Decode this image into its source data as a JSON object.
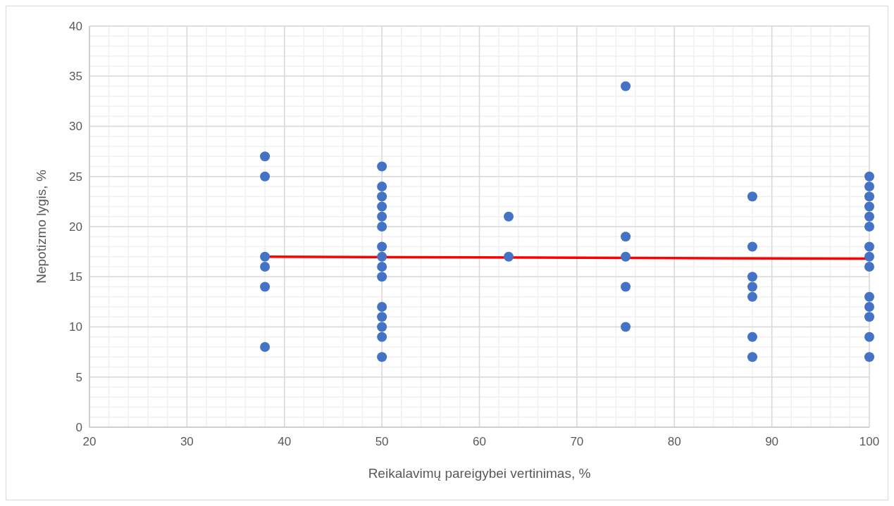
{
  "chart_data": {
    "type": "scatter",
    "xlabel": "Reikalavimų pareigybei vertinimas, %",
    "ylabel": "Nepotizmo lygis, %",
    "xlim": [
      20,
      100
    ],
    "xticks": [
      20,
      30,
      40,
      50,
      60,
      70,
      80,
      90,
      100
    ],
    "ylim": [
      0,
      40
    ],
    "yticks": [
      0,
      5,
      10,
      15,
      20,
      25,
      30,
      35,
      40
    ],
    "grid": true,
    "marker": "circle",
    "series": [
      {
        "color": "#4472c4",
        "x": [
          38,
          38,
          38,
          38,
          38,
          38,
          50,
          50,
          50,
          50,
          50,
          50,
          50,
          50,
          50,
          50,
          50,
          50,
          50,
          50,
          50,
          63,
          63,
          75,
          75,
          75,
          75,
          75,
          88,
          88,
          88,
          88,
          88,
          88,
          88,
          100,
          100,
          100,
          100,
          100,
          100,
          100,
          100,
          100,
          100,
          100,
          100,
          100,
          100
        ],
        "values": [
          27,
          25,
          17,
          16,
          14,
          8,
          26,
          24,
          23,
          22,
          21,
          20,
          18,
          17,
          16,
          15,
          12,
          11,
          10,
          9,
          7,
          21,
          17,
          34,
          19,
          17,
          14,
          10,
          23,
          18,
          15,
          14,
          13,
          9,
          7,
          25,
          24,
          23,
          22,
          21,
          20,
          18,
          17,
          16,
          13,
          12,
          11,
          9,
          7
        ]
      },
      {
        "type": "line",
        "color": "#ff0000",
        "x": [
          38,
          100
        ],
        "values": [
          17,
          16.8
        ],
        "marker": "none",
        "line_style": "solid"
      }
    ]
  }
}
